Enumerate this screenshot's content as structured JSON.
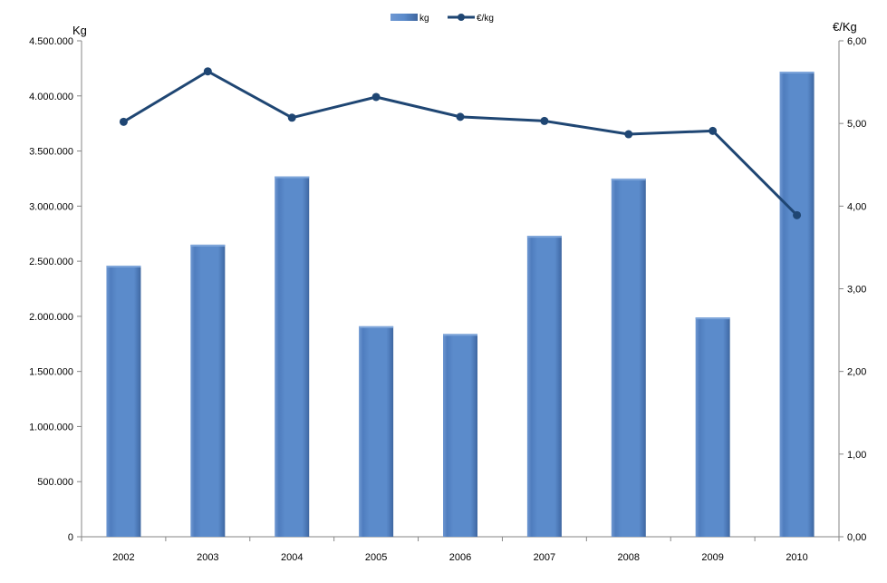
{
  "chart_data": {
    "type": "bar",
    "categories": [
      "2002",
      "2003",
      "2004",
      "2005",
      "2006",
      "2007",
      "2008",
      "2009",
      "2010"
    ],
    "series": [
      {
        "name": "kg",
        "type": "bar",
        "axis": "left",
        "values": [
          2460000,
          2650000,
          3270000,
          1910000,
          1840000,
          2730000,
          3250000,
          1990000,
          4220000
        ],
        "color": "#5B8BCB"
      },
      {
        "name": "€/kg",
        "type": "line",
        "axis": "right",
        "values": [
          5.02,
          5.63,
          5.07,
          5.32,
          5.08,
          5.03,
          4.87,
          4.91,
          3.89
        ],
        "color": "#1F4673"
      }
    ],
    "y_left": {
      "label": "Kg",
      "lim": [
        0,
        4500000
      ],
      "ticks": [
        "0",
        "500.000",
        "1.000.000",
        "1.500.000",
        "2.000.000",
        "2.500.000",
        "3.000.000",
        "3.500.000",
        "4.000.000",
        "4.500.000"
      ]
    },
    "y_right": {
      "label": "€/Kg",
      "lim": [
        0,
        6
      ],
      "ticks": [
        "0,00",
        "1,00",
        "2,00",
        "3,00",
        "4,00",
        "5,00",
        "6,00"
      ]
    },
    "legend": {
      "placement": "top-center",
      "entries": [
        "kg",
        "€/kg"
      ]
    },
    "grid": false
  }
}
